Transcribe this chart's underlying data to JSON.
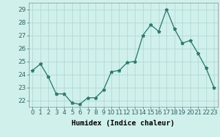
{
  "x": [
    0,
    1,
    2,
    3,
    4,
    5,
    6,
    7,
    8,
    9,
    10,
    11,
    12,
    13,
    14,
    15,
    16,
    17,
    18,
    19,
    20,
    21,
    22,
    23
  ],
  "y": [
    24.3,
    24.8,
    23.8,
    22.5,
    22.5,
    21.8,
    21.7,
    22.2,
    22.2,
    22.8,
    24.2,
    24.3,
    24.9,
    25.0,
    27.0,
    27.8,
    27.3,
    29.0,
    27.5,
    26.4,
    26.6,
    25.6,
    24.5,
    23.0
  ],
  "line_color": "#2d7a6e",
  "marker": "*",
  "marker_size": 3.5,
  "bg_color": "#d0f0ec",
  "grid_color": "#b0d8d4",
  "xlabel": "Humidex (Indice chaleur)",
  "ylim": [
    21.5,
    29.5
  ],
  "yticks": [
    22,
    23,
    24,
    25,
    26,
    27,
    28,
    29
  ],
  "xticks": [
    0,
    1,
    2,
    3,
    4,
    5,
    6,
    7,
    8,
    9,
    10,
    11,
    12,
    13,
    14,
    15,
    16,
    17,
    18,
    19,
    20,
    21,
    22,
    23
  ],
  "xlabel_fontsize": 7.5,
  "tick_fontsize": 6.5,
  "line_width": 1.0
}
